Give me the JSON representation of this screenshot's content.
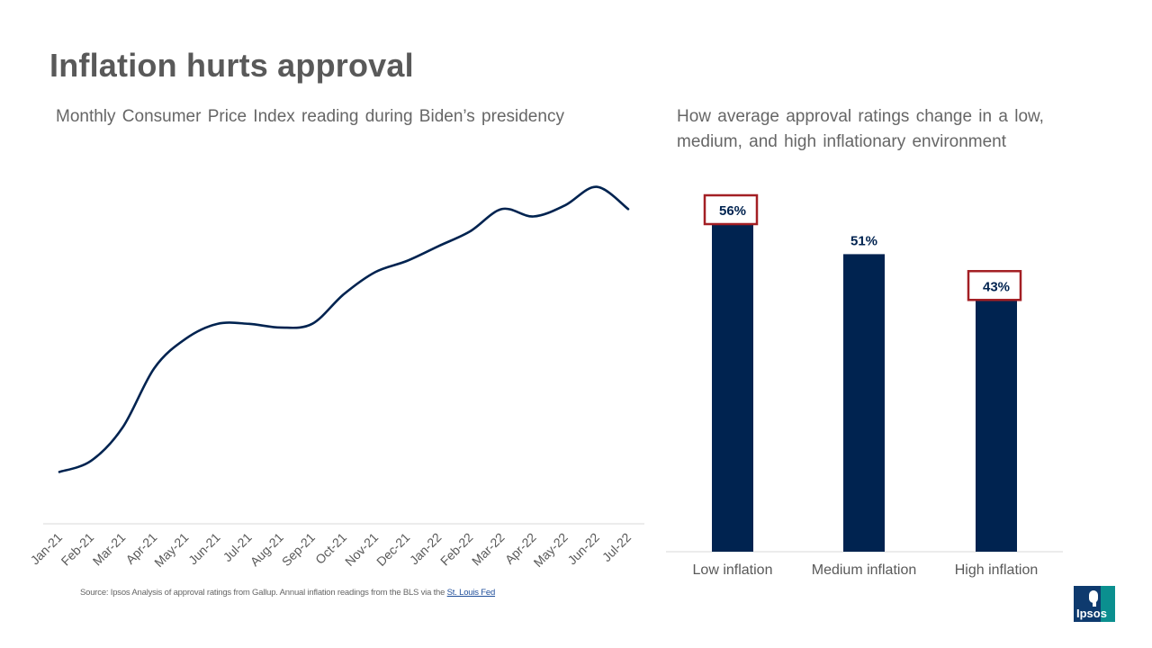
{
  "title": "Inflation hurts approval",
  "left_subtitle": "Monthly Consumer Price Index reading during Biden’s presidency",
  "right_subtitle": "How average approval ratings change in a low, medium, and high inflationary environment",
  "source": {
    "text": "Source: Ipsos Analysis of approval ratings from Gallup. Annual inflation readings from the BLS via the ",
    "link": "St. Louis Fed"
  },
  "logo_text": "Ipsos",
  "colors": {
    "navy": "#002350",
    "highlight_border": "#a31f24",
    "axis": "#d9d9d9",
    "text": "#595959"
  },
  "chart_data": [
    {
      "type": "line",
      "x": [
        "Jan-21",
        "Feb-21",
        "Mar-21",
        "Apr-21",
        "May-21",
        "Jun-21",
        "Jul-21",
        "Aug-21",
        "Sep-21",
        "Oct-21",
        "Nov-21",
        "Dec-21",
        "Jan-22",
        "Feb-22",
        "Mar-22",
        "Apr-22",
        "May-22",
        "Jun-22",
        "Jul-22"
      ],
      "series": [
        {
          "values": [
            1.4,
            1.7,
            2.6,
            4.2,
            5.0,
            5.4,
            5.4,
            5.3,
            5.4,
            6.2,
            6.8,
            7.1,
            7.5,
            7.9,
            8.5,
            8.3,
            8.6,
            9.1,
            8.5
          ]
        }
      ],
      "ylim": [
        0,
        10.5
      ],
      "grid": false,
      "color": "#002350"
    },
    {
      "type": "bar",
      "categories": [
        "Low inflation",
        "Medium inflation",
        "High inflation"
      ],
      "values": [
        56,
        51,
        43
      ],
      "labels": [
        "56%",
        "51%",
        "43%"
      ],
      "highlighted": [
        true,
        false,
        true
      ],
      "ylim": [
        0,
        56
      ],
      "color": "#002350"
    }
  ]
}
